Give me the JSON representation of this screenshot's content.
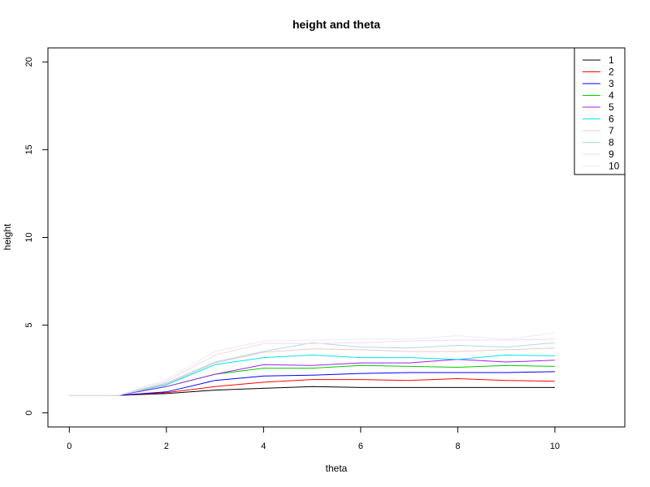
{
  "chart_data": {
    "type": "line",
    "title": "height and theta",
    "xlabel": "theta",
    "ylabel": "height",
    "xlim": [
      -0.44,
      11.44
    ],
    "ylim": [
      -0.8,
      20.8
    ],
    "xticks": [
      0,
      2,
      4,
      6,
      8,
      10
    ],
    "yticks": [
      0,
      5,
      10,
      15,
      20
    ],
    "grid": false,
    "legend_position": "top-right",
    "x": [
      0,
      1,
      2,
      3,
      4,
      5,
      6,
      7,
      8,
      9,
      10
    ],
    "series": [
      {
        "name": "1",
        "color": "#000000",
        "values": [
          1.0,
          1.0,
          1.1,
          1.3,
          1.4,
          1.5,
          1.45,
          1.45,
          1.45,
          1.45,
          1.45
        ]
      },
      {
        "name": "2",
        "color": "#ff0000",
        "values": [
          1.0,
          1.0,
          1.15,
          1.5,
          1.75,
          1.9,
          1.9,
          1.85,
          1.95,
          1.85,
          1.8
        ]
      },
      {
        "name": "3",
        "color": "#0000ff",
        "values": [
          1.0,
          1.0,
          1.2,
          1.85,
          2.1,
          2.15,
          2.25,
          2.3,
          2.3,
          2.3,
          2.35
        ]
      },
      {
        "name": "4",
        "color": "#00cd00",
        "values": [
          1.0,
          1.0,
          1.5,
          2.2,
          2.55,
          2.55,
          2.7,
          2.65,
          2.6,
          2.7,
          2.65
        ]
      },
      {
        "name": "5",
        "color": "#a020f0",
        "values": [
          1.0,
          1.0,
          1.5,
          2.2,
          2.75,
          2.7,
          2.85,
          2.85,
          3.05,
          2.9,
          3.0
        ]
      },
      {
        "name": "6",
        "color": "#00e5ee",
        "values": [
          1.0,
          1.0,
          1.6,
          2.75,
          3.15,
          3.3,
          3.15,
          3.15,
          3.05,
          3.3,
          3.25
        ]
      },
      {
        "name": "7",
        "color": "#f0c8c8",
        "values": [
          1.0,
          1.0,
          1.65,
          2.85,
          3.45,
          3.65,
          3.6,
          3.5,
          3.5,
          3.6,
          3.7
        ]
      },
      {
        "name": "8",
        "color": "#add8e6",
        "values": [
          1.0,
          1.0,
          1.7,
          2.9,
          3.5,
          4.0,
          3.75,
          3.7,
          3.85,
          3.75,
          4.0
        ]
      },
      {
        "name": "9",
        "color": "#ffd6e8",
        "values": [
          1.0,
          1.0,
          1.8,
          3.3,
          3.95,
          3.95,
          4.0,
          4.1,
          4.15,
          4.15,
          4.2
        ]
      },
      {
        "name": "10",
        "color": "#ebebf5",
        "values": [
          1.0,
          1.0,
          1.9,
          3.5,
          4.1,
          4.15,
          4.2,
          4.2,
          4.4,
          4.2,
          4.55
        ]
      }
    ]
  }
}
